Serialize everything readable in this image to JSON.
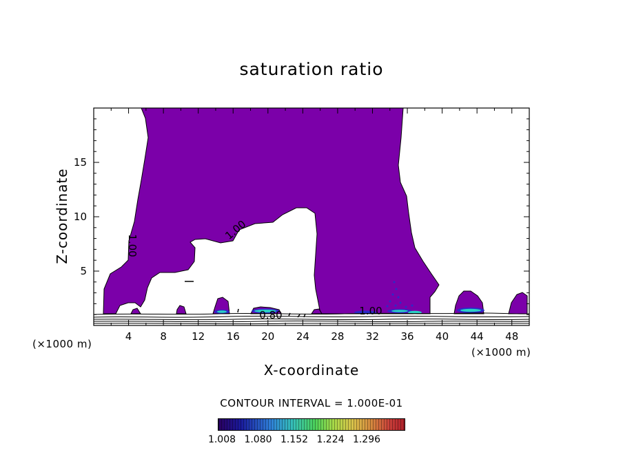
{
  "chart_data": {
    "type": "contour",
    "title": "saturation ratio",
    "xlabel": "X-coordinate",
    "ylabel": "Z-coordinate",
    "x_unit": "(×1000 m)",
    "y_unit": "(×1000 m)",
    "xlim": [
      0,
      50
    ],
    "ylim": [
      0,
      20
    ],
    "x_ticks": [
      "4",
      "8",
      "12",
      "16",
      "20",
      "24",
      "28",
      "32",
      "36",
      "40",
      "44",
      "48"
    ],
    "y_ticks": [
      "5",
      "10",
      "15"
    ],
    "contour_interval_text": "CONTOUR INTERVAL = 1.000E-01",
    "contour_labels": [
      "1.00",
      "1.00",
      "0.80",
      "1.00"
    ],
    "colorbar": {
      "ticks": [
        "1.008",
        "1.080",
        "1.152",
        "1.224",
        "1.296"
      ],
      "min": 1.008,
      "max": 1.296
    },
    "fill_color": "#7b00a9",
    "cool_color": "#2ad2c4",
    "deep_color": "#2b2bc8"
  }
}
